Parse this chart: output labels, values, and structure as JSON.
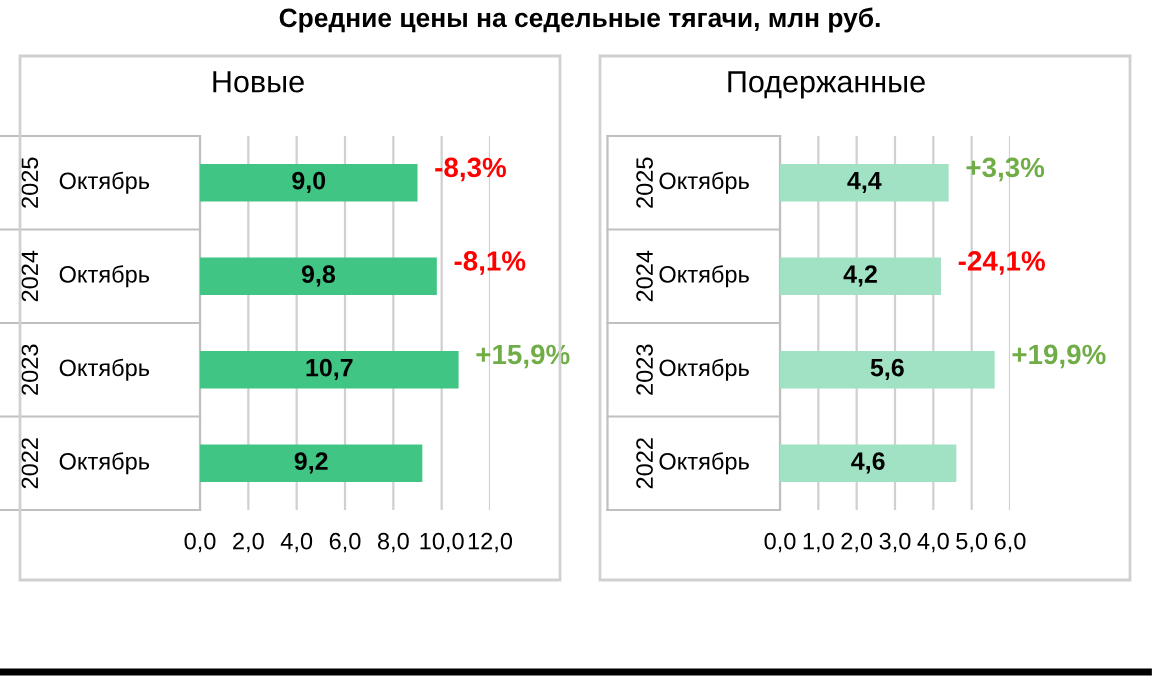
{
  "chart_data": [
    {
      "type": "bar",
      "orientation": "horizontal",
      "title": "Новые",
      "annotations": [
        "Средние цены на седельные тягачи, млн руб.",
        {
          "text": "-8,3%",
          "x": 9.0,
          "y": "2025 Октябрь"
        },
        {
          "text": "-8,1%",
          "x": 9.8,
          "y": "2024 Октябрь"
        },
        {
          "text": "+15,9%",
          "x": 10.7,
          "y": "2023 Октябрь"
        }
      ],
      "categories": [
        "2025 Октябрь",
        "2024 Октябрь",
        "2023 Октябрь",
        "2022 Октябрь"
      ],
      "values": [
        9.0,
        9.8,
        10.7,
        9.2
      ],
      "value_labels": [
        "9,0",
        "9,8",
        "10,7",
        "9,2"
      ],
      "color": "#40c585",
      "xlim": [
        0,
        12
      ],
      "xticks": [
        {
          "value": 0,
          "label": "0,0"
        },
        {
          "value": 2,
          "label": "2,0"
        },
        {
          "value": 4,
          "label": "4,0"
        },
        {
          "value": 6,
          "label": "6,0"
        },
        {
          "value": 8,
          "label": "8,0"
        },
        {
          "value": 10,
          "label": "10,0"
        },
        {
          "value": 12,
          "label": "12,0"
        }
      ],
      "grid": "x",
      "legend": false
    },
    {
      "type": "bar",
      "orientation": "horizontal",
      "title": "Подержанные",
      "annotations": [
        {
          "text": "+3,3%",
          "x": 4.4,
          "y": "2025 Октябрь"
        },
        {
          "text": "-24,1%",
          "x": 4.2,
          "y": "2024 Октябрь"
        },
        {
          "text": "+19,9%",
          "x": 5.6,
          "y": "2023 Октябрь"
        }
      ],
      "categories": [
        "2025 Октябрь",
        "2024 Октябрь",
        "2023 Октябрь",
        "2022 Октябрь"
      ],
      "values": [
        4.4,
        4.2,
        5.6,
        4.6
      ],
      "value_labels": [
        "4,4",
        "4,2",
        "5,6",
        "4,6"
      ],
      "color": "#a0e2c3",
      "xlim": [
        0,
        6
      ],
      "xticks": [
        {
          "value": 0,
          "label": "0,0"
        },
        {
          "value": 1,
          "label": "1,0"
        },
        {
          "value": 2,
          "label": "2,0"
        },
        {
          "value": 3,
          "label": "3,0"
        },
        {
          "value": 4,
          "label": "4,0"
        },
        {
          "value": 5,
          "label": "5,0"
        },
        {
          "value": 6,
          "label": "6,0"
        }
      ],
      "grid": "x",
      "legend": false
    }
  ]
}
